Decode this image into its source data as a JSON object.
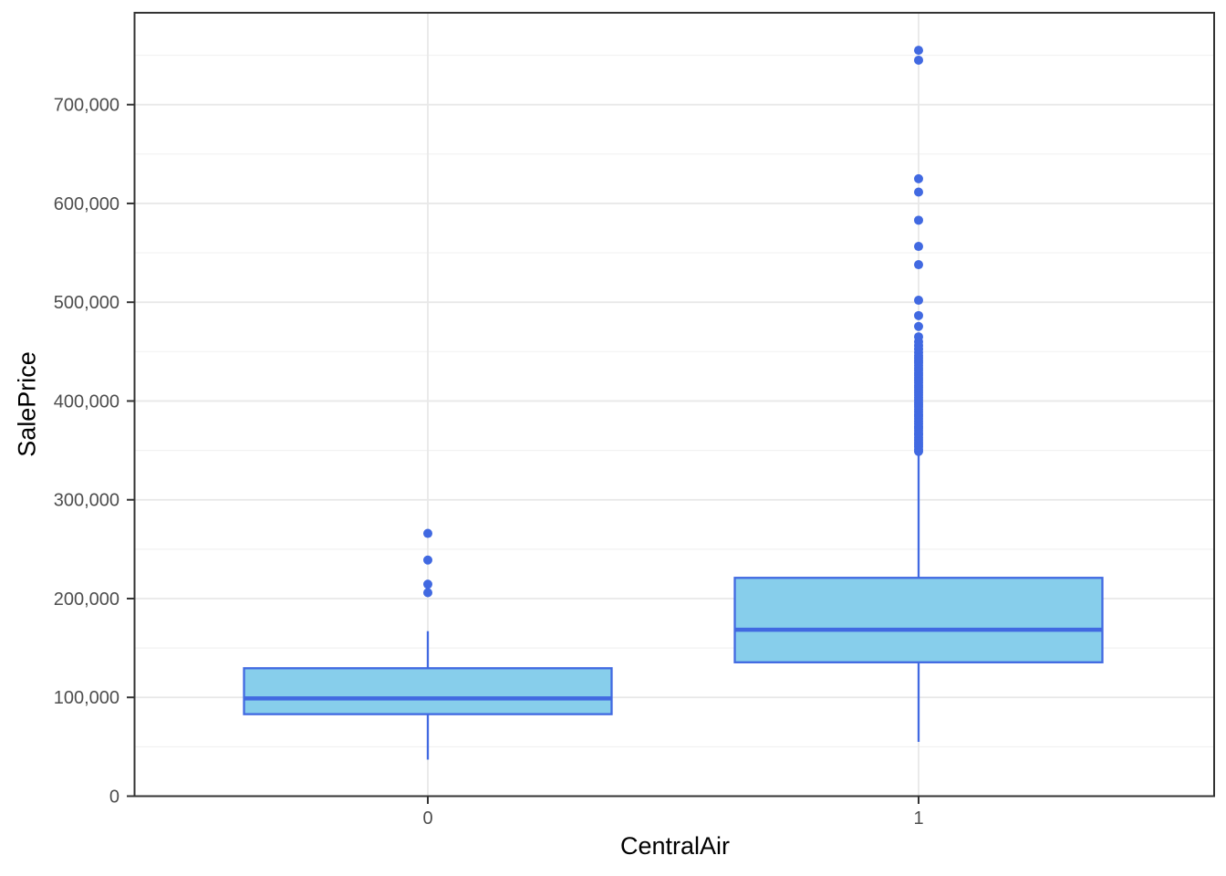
{
  "figure": {
    "background": "#FFFFFF"
  },
  "chart_data": {
    "type": "boxplot",
    "title": "",
    "xlabel": "CentralAir",
    "ylabel": "SalePrice",
    "categories": [
      "0",
      "1"
    ],
    "ylim": [
      0,
      793000
    ],
    "y_major_ticks": [
      0,
      100000,
      200000,
      300000,
      400000,
      500000,
      600000,
      700000
    ],
    "y_tick_labels": [
      "0",
      "100,000",
      "200,000",
      "300,000",
      "400,000",
      "500,000",
      "600,000",
      "700,000"
    ],
    "y_minor_ticks": [
      50000,
      150000,
      250000,
      350000,
      450000,
      550000,
      650000,
      750000
    ],
    "grid": "on",
    "legend": "none",
    "series": [
      {
        "category": "0",
        "whisker_low": 37000,
        "q1": 83000,
        "median": 99000,
        "q3": 129500,
        "whisker_high": 167000,
        "outliers": [
          206000,
          214500,
          239000,
          266000
        ]
      },
      {
        "category": "1",
        "whisker_low": 55000,
        "q1": 135500,
        "median": 168500,
        "q3": 221000,
        "whisker_high": 345000,
        "outliers": [
          349000,
          351000,
          353500,
          356000,
          358000,
          360500,
          363000,
          365500,
          367500,
          370000,
          372500,
          374500,
          377000,
          379500,
          382000,
          384500,
          386500,
          389000,
          391500,
          394000,
          396000,
          398500,
          401000,
          403500,
          406000,
          408500,
          411000,
          413500,
          416000,
          418500,
          421000,
          423500,
          426000,
          428500,
          431000,
          433500,
          436000,
          438500,
          441000,
          443500,
          446000,
          449000,
          452500,
          456000,
          460000,
          465000,
          475500,
          486500,
          502000,
          538000,
          556500,
          583000,
          611500,
          625000,
          745000,
          755000
        ]
      }
    ],
    "style": {
      "box_fill": "#87CEEB",
      "box_stroke": "#4169E1",
      "median_stroke": "#4169E1",
      "whisker_stroke": "#4169E1",
      "outlier_fill": "#4169E1",
      "panel_background": "#FFFFFF",
      "panel_border": "#333333",
      "grid_major": "#E8E8E8",
      "grid_minor": "#F2F2F2",
      "tick_color": "#333333",
      "tick_label_color": "#4D4D4D",
      "axis_title_color": "#000000"
    }
  }
}
